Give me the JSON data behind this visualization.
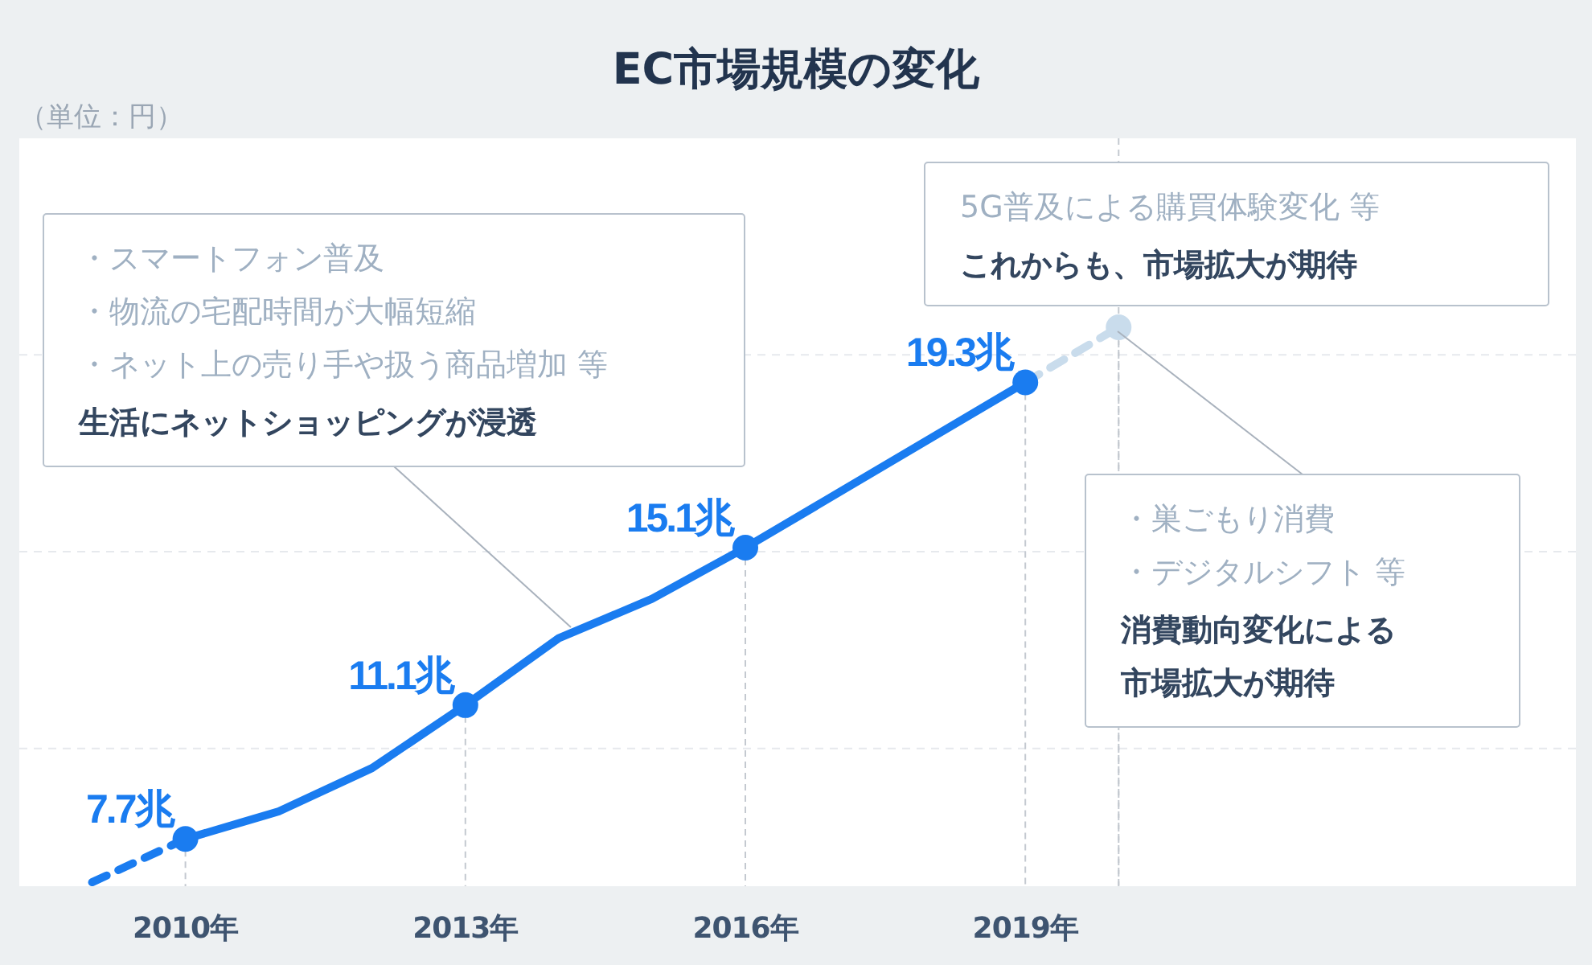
{
  "chart_data": {
    "type": "line",
    "title": "EC市場規模の変化",
    "xlim": [
      2008.22,
      2024.9
    ],
    "ylim": [
      6.5,
      25.5
    ],
    "xticks": [
      {
        "value": 2010,
        "label": "2010年"
      },
      {
        "value": 2013,
        "label": "2013年"
      },
      {
        "value": 2016,
        "label": "2016年"
      },
      {
        "value": 2019,
        "label": "2019年"
      }
    ],
    "ref_lines": [
      {
        "axis": "x",
        "value": 2020,
        "color": "#c4c9d0",
        "line_style": "dashed"
      }
    ],
    "yticks": [
      {
        "value": 10,
        "label": null
      },
      {
        "value": 15,
        "label": null
      },
      {
        "value": 20,
        "label": null
      }
    ],
    "tick_labels": "x",
    "grid": "y",
    "series": [
      {
        "line_style": "dashed",
        "color": "#1a7cf0",
        "x": [
          2009,
          2010
        ],
        "values": [
          6.6,
          7.7
        ]
      },
      {
        "line_style": "solid",
        "color": "#1a7cf0",
        "x": [
          2010,
          2011,
          2012,
          2013,
          2014,
          2015,
          2016,
          2017,
          2018,
          2019
        ],
        "values": [
          7.7,
          8.4,
          9.5,
          11.1,
          12.8,
          13.8,
          15.1,
          16.5,
          17.9,
          19.3
        ]
      },
      {
        "line_style": "dashed",
        "color": "#c9dcec",
        "x": [
          2019,
          2020
        ],
        "values": [
          19.3,
          20.7
        ]
      },
      {
        "type": "scatter",
        "marker": "circle",
        "color": "#1a7cf0",
        "x": [
          2010,
          2013,
          2016,
          2019
        ],
        "values": [
          7.7,
          11.1,
          15.1,
          19.3
        ],
        "value_labels": [
          "7.7兆",
          "11.1兆",
          "15.1兆",
          "19.3兆"
        ]
      },
      {
        "type": "scatter",
        "marker": "circle",
        "color": "#c9dcec",
        "x": [
          2020
        ],
        "values": [
          20.7
        ]
      }
    ],
    "annotations": [
      "（単位：円）",
      "・スマートフォン普及",
      "・物流の宅配時間が大幅短縮",
      "・ネット上の売り手や扱う商品増加 等",
      "生活にネットショッピングが浸透",
      "5G普及による購買体験変化 等",
      "これからも、市場拡大が期待",
      "・巣ごもり消費",
      "・デジタルシフト 等",
      "消費動向変化による市場拡大が期待"
    ]
  }
}
